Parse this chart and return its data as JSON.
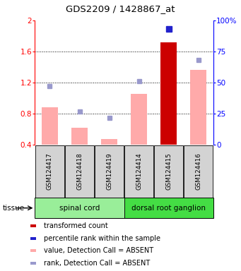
{
  "title": "GDS2209 / 1428867_at",
  "samples": [
    "GSM124417",
    "GSM124418",
    "GSM124419",
    "GSM124414",
    "GSM124415",
    "GSM124416"
  ],
  "tissue_groups": [
    {
      "label": "spinal cord",
      "samples": [
        0,
        1,
        2
      ],
      "color": "#99ee99"
    },
    {
      "label": "dorsal root ganglion",
      "samples": [
        3,
        4,
        5
      ],
      "color": "#44dd44"
    }
  ],
  "ylim_left": [
    0.4,
    2.0
  ],
  "ylim_right": [
    0,
    100
  ],
  "yticks_left": [
    0.4,
    0.8,
    1.2,
    1.6,
    2.0
  ],
  "ytick_labels_left": [
    "0.4",
    "0.8",
    "1.2",
    "1.6",
    "2"
  ],
  "yticks_right": [
    0,
    25,
    50,
    75,
    100
  ],
  "ytick_labels_right": [
    "0",
    "25",
    "50",
    "75",
    "100%"
  ],
  "bar_values": [
    null,
    null,
    null,
    null,
    1.72,
    null
  ],
  "bar_absent_values": [
    0.88,
    0.62,
    0.48,
    1.06,
    null,
    1.36
  ],
  "rank_present": [
    null,
    null,
    null,
    null,
    93,
    null
  ],
  "rank_absent": [
    47,
    27,
    22,
    51,
    null,
    68
  ],
  "bar_color_present": "#cc0000",
  "bar_color_absent": "#ffaaaa",
  "rank_color_present": "#2222cc",
  "rank_color_absent": "#9999cc",
  "bar_width": 0.55,
  "background_color": "#ffffff"
}
